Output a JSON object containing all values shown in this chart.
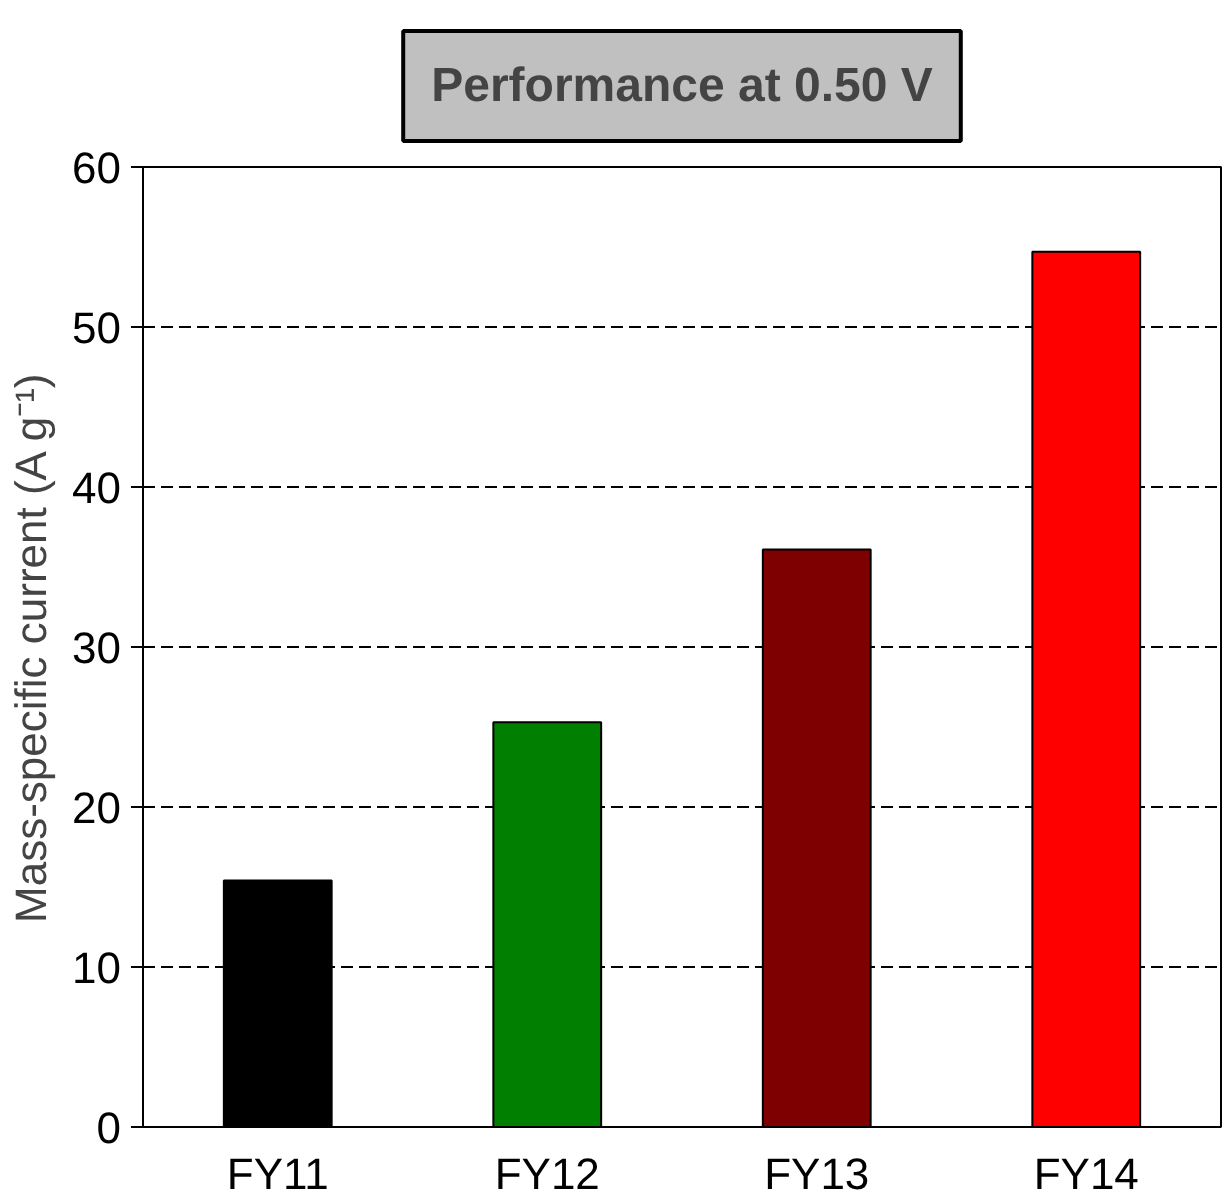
{
  "chart_data": {
    "type": "bar",
    "title": "Performance at 0.50 V",
    "ylabel": "Mass-specific current (A g⁻¹)",
    "categories": [
      "FY11",
      "FY12",
      "FY13",
      "FY14"
    ],
    "values": [
      15.4,
      25.3,
      36.1,
      54.7
    ],
    "colors": [
      "#000000",
      "#007f00",
      "#7f0000",
      "#ff0000"
    ],
    "ylim": [
      0,
      60
    ],
    "yticks": [
      0,
      10,
      20,
      30,
      40,
      50,
      60
    ],
    "grid": "y"
  }
}
